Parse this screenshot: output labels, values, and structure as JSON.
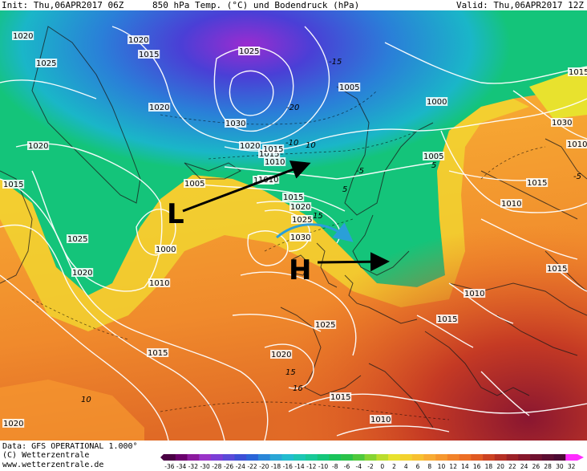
{
  "header": {
    "init": "Init: Thu,06APR2017 06Z",
    "title": "850 hPa Temp. (°C) und Bodendruck (hPa)",
    "valid": "Valid: Thu,06APR2017 12Z"
  },
  "footer": {
    "data_line": "Data: GFS OPERATIONAL 1.000°",
    "copyright": "(C) Wetterzentrale",
    "url": "www.wetterzentrale.de"
  },
  "map": {
    "pressure_labels": [
      "1020",
      "1025",
      "1015",
      "1020",
      "1025",
      "1030",
      "1020",
      "1015",
      "1005",
      "1010",
      "1000",
      "1020",
      "1015",
      "1010",
      "1005",
      "1025",
      "1000",
      "1020",
      "1010",
      "1015",
      "1020",
      "1025",
      "1030",
      "1025",
      "1015",
      "1020",
      "1015",
      "1020",
      "1010",
      "1010",
      "1010",
      "1015",
      "1005",
      "1030",
      "1015",
      "1010",
      "1015",
      "1015",
      "1010",
      "1015",
      "1020"
    ],
    "temp_labels": [
      "-20",
      "-15",
      "-10",
      "-5",
      "10",
      "5",
      "5",
      "15",
      "10",
      "16",
      "15",
      "-5"
    ],
    "low_marker": "L",
    "high_marker": "H",
    "arrow_colors": {
      "black": "#000000",
      "blue": "#2a9fd8"
    }
  },
  "colorbar": {
    "labels": [
      "-36",
      "-34",
      "-32",
      "-30",
      "-28",
      "-26",
      "-24",
      "-22",
      "-20",
      "-18",
      "-16",
      "-14",
      "-12",
      "-10",
      "-8",
      "-6",
      "-4",
      "-2",
      "0",
      "2",
      "4",
      "6",
      "8",
      "10",
      "12",
      "14",
      "16",
      "18",
      "20",
      "22",
      "24",
      "26",
      "28",
      "30",
      "32"
    ],
    "colors": [
      "#4a0044",
      "#6a006c",
      "#8c1a9e",
      "#9a34c8",
      "#7b3fd6",
      "#5a4ad8",
      "#3c4fd6",
      "#2a64d8",
      "#2a86d8",
      "#2aa6d6",
      "#22bccf",
      "#1cc6b4",
      "#18c998",
      "#14c67a",
      "#19c35a",
      "#2ac24a",
      "#4fc93d",
      "#86d433",
      "#bbdd2e",
      "#e8e22e",
      "#f3d22e",
      "#f7c030",
      "#f8ac34",
      "#f6982f",
      "#f2832a",
      "#ec6e25",
      "#e05a22",
      "#cc4322",
      "#b53024",
      "#9c2228",
      "#86182c",
      "#701230",
      "#5c0e32",
      "#4c0a34",
      "#ff2dff"
    ]
  }
}
